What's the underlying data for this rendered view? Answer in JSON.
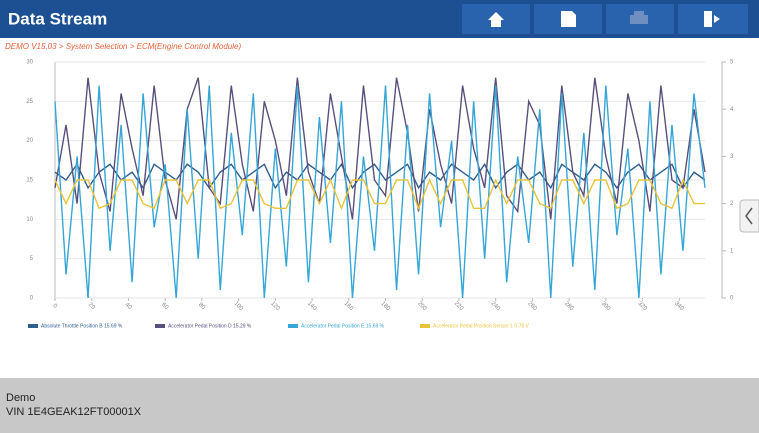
{
  "header": {
    "title": "Data Stream"
  },
  "breadcrumb": "DEMO V15.03 > System Selection > ECM(Engine Control Module)",
  "footer": {
    "name": "Demo",
    "vin": "VIN 1E4GEAK12FT00001X"
  },
  "chart_data": {
    "type": "line",
    "x": [
      0,
      6,
      12,
      18,
      24,
      30,
      36,
      42,
      48,
      54,
      60,
      66,
      72,
      78,
      84,
      90,
      96,
      102,
      108,
      114,
      120,
      126,
      132,
      138,
      144,
      150,
      156,
      162,
      168,
      174,
      180,
      186,
      192,
      198,
      204,
      210,
      216,
      222,
      228,
      234,
      240,
      246,
      252,
      258,
      264,
      270,
      276,
      282,
      288,
      294,
      300,
      306,
      312,
      318,
      324,
      330,
      336,
      342,
      348,
      354
    ],
    "xlim": [
      0,
      354
    ],
    "xticks": [
      0,
      20,
      40,
      60,
      80,
      100,
      120,
      140,
      160,
      180,
      200,
      220,
      240,
      260,
      280,
      300,
      320,
      340
    ],
    "ylim": [
      0,
      30
    ],
    "yticks": [
      0,
      5,
      10,
      15,
      20,
      25,
      30
    ],
    "y2lim": [
      0,
      5
    ],
    "y2ticks": [
      0,
      1,
      2,
      3,
      4,
      5
    ],
    "grid": true,
    "series": [
      {
        "name": "Absolute Throttle Position B 15.69 %",
        "color": "#2f5f8f",
        "values": [
          16,
          15,
          17,
          14,
          16,
          17,
          15,
          16,
          14,
          17,
          16,
          15,
          17,
          16,
          14,
          16,
          17,
          15,
          16,
          17,
          14,
          16,
          15,
          17,
          16,
          15,
          17,
          14,
          16,
          17,
          15,
          16,
          17,
          14,
          16,
          15,
          17,
          16,
          15,
          17,
          14,
          16,
          17,
          15,
          16,
          14,
          17,
          16,
          15,
          17,
          16,
          14,
          16,
          17,
          15,
          16,
          17,
          14,
          16,
          15
        ]
      },
      {
        "name": "Accelerator Pedal Position D 15.29 %",
        "color": "#5a4f7c",
        "values": [
          14,
          22,
          12,
          28,
          16,
          11,
          26,
          19,
          13,
          27,
          15,
          10,
          24,
          28,
          14,
          12,
          27,
          17,
          11,
          25,
          20,
          13,
          28,
          16,
          12,
          26,
          18,
          10,
          27,
          15,
          13,
          28,
          21,
          11,
          24,
          17,
          12,
          27,
          19,
          14,
          28,
          13,
          11,
          25,
          22,
          10,
          27,
          16,
          13,
          28,
          18,
          12,
          26,
          20,
          11,
          27,
          15,
          14,
          24,
          16
        ]
      },
      {
        "name": "Accelerator Pedal Position E 15.69 %",
        "color": "#35a6d6",
        "values": [
          25,
          3,
          18,
          0,
          27,
          6,
          22,
          2,
          26,
          9,
          17,
          0,
          24,
          5,
          27,
          1,
          21,
          8,
          26,
          0,
          19,
          4,
          27,
          2,
          23,
          7,
          25,
          0,
          18,
          6,
          27,
          1,
          22,
          3,
          26,
          9,
          20,
          0,
          25,
          5,
          27,
          2,
          18,
          7,
          24,
          0,
          26,
          4,
          21,
          1,
          27,
          8,
          19,
          0,
          25,
          3,
          22,
          6,
          26,
          14
        ]
      },
      {
        "name": "Accelerator Pedal Position Sensor 1 0.78 V",
        "color": "#e8c33a",
        "axis": "y2",
        "values": [
          2.5,
          2.0,
          2.5,
          2.5,
          1.9,
          2.0,
          2.5,
          2.5,
          2.0,
          1.9,
          2.5,
          2.5,
          2.0,
          2.5,
          2.5,
          1.9,
          2.0,
          2.5,
          2.5,
          2.0,
          1.9,
          1.9,
          2.5,
          2.5,
          2.0,
          2.5,
          1.9,
          2.5,
          2.5,
          2.0,
          2.0,
          2.5,
          2.5,
          1.9,
          2.5,
          2.0,
          2.5,
          2.5,
          1.9,
          1.9,
          2.5,
          2.0,
          2.5,
          2.5,
          2.0,
          1.9,
          2.5,
          2.5,
          2.0,
          2.5,
          2.5,
          1.9,
          2.0,
          2.5,
          2.5,
          2.0,
          1.9,
          2.5,
          2.0,
          2.0
        ]
      }
    ]
  }
}
